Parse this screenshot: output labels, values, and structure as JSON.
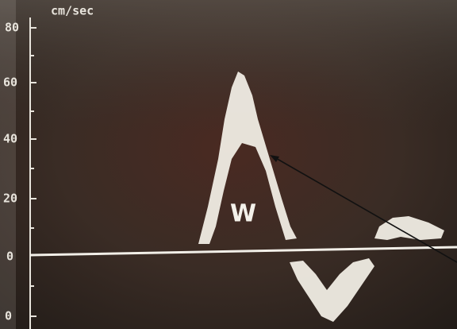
{
  "axis": {
    "unit": "cm/sec",
    "tick_labels": [
      "80",
      "60",
      "40",
      "20",
      "0",
      "0"
    ]
  },
  "annotation": "W"
}
